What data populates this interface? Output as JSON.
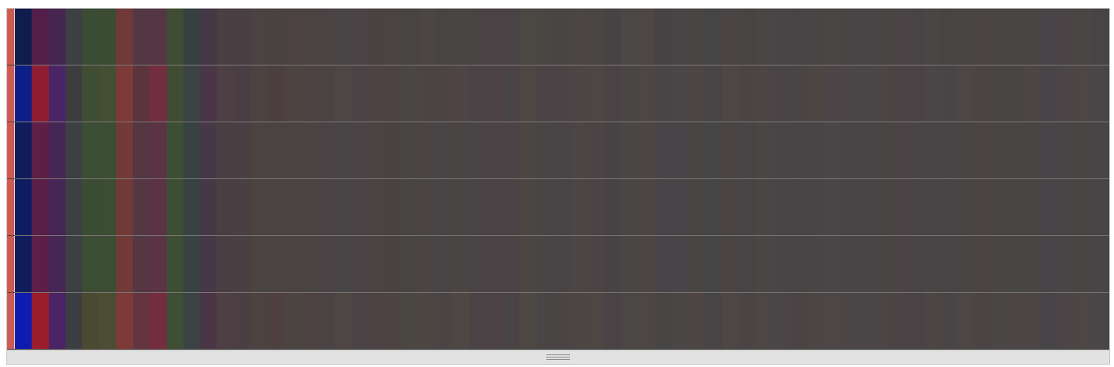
{
  "heatmap": {
    "marker_color": "#cf5a52",
    "background_color": "#474444",
    "separator_color": "#7a7676",
    "resize_grip_icon": "grip-lines-icon",
    "rows": [
      [
        "#0e1d4e",
        "#531f4a",
        "#452650",
        "#3d3f42",
        "#3a4c33",
        "#3c4c33",
        "#6f3a38",
        "#533843",
        "#553644",
        "#3e4d33",
        "#374141",
        "#453946",
        "#4a3f42",
        "#4a3f42",
        "#494441",
        "#4a4143",
        "#4b4241",
        "#494342",
        "#4b4243",
        "#474545",
        "#4b4346",
        "#4a4242",
        "#4a4342",
        "#474542",
        "#4b4543",
        "#474444",
        "#4a4443",
        "#484444",
        "#4b4246",
        "#494345",
        "#4b4743",
        "#4a4644",
        "#484544",
        "#4b4543",
        "#4a4643",
        "#474345",
        "#4a4745",
        "#4c4644",
        "#474345",
        "#474546",
        "#494544",
        "#464546",
        "#4a4544",
        "#474444",
        "#4a4643",
        "#484546",
        "#484445",
        "#484544",
        "#4a4646",
        "#494545",
        "#474545",
        "#484544",
        "#4a4444",
        "#484345",
        "#494644",
        "#474444",
        "#4a4545",
        "#4a4543",
        "#484645",
        "#484645",
        "#4a4545",
        "#474547",
        "#4a4544",
        "#4a4645",
        "#484446"
      ],
      [
        "#0d1e86",
        "#8e1d33",
        "#4a2466",
        "#3d3d40",
        "#3f4e33",
        "#434f33",
        "#7e3a38",
        "#5b343e",
        "#722d41",
        "#3f4e33",
        "#3a4243",
        "#4a3646",
        "#4d3f44",
        "#4a3e44",
        "#4c4240",
        "#4d3e40",
        "#4c4440",
        "#4e4142",
        "#4a4243",
        "#4c4644",
        "#4a4346",
        "#4d4244",
        "#4d4242",
        "#4a4643",
        "#4c4442",
        "#4a4444",
        "#4d4443",
        "#4a4345",
        "#4c4245",
        "#4a4345",
        "#4d4744",
        "#4a4445",
        "#4b4345",
        "#4c4543",
        "#4d4644",
        "#4a4345",
        "#4b4646",
        "#4d4644",
        "#474545",
        "#4a4546",
        "#4c4544",
        "#474447",
        "#4c4644",
        "#4a4444",
        "#4b4644",
        "#4a4446",
        "#494445",
        "#4b4544",
        "#4c4547",
        "#4b4545",
        "#4a4546",
        "#4b4545",
        "#4c4444",
        "#4a4345",
        "#4b4645",
        "#484546",
        "#4c4645",
        "#4b4444",
        "#484645",
        "#4a4545",
        "#4c4545",
        "#474548",
        "#4b4545",
        "#4c4645",
        "#4a4546"
      ],
      [
        "#0f1d5d",
        "#5e1f47",
        "#452655",
        "#3c4042",
        "#3b4d33",
        "#3b4d33",
        "#733a37",
        "#553643",
        "#5a3444",
        "#3d4f33",
        "#384243",
        "#473847",
        "#493f43",
        "#4a3f43",
        "#4a4441",
        "#4b4243",
        "#4a4341",
        "#4a4343",
        "#4a4244",
        "#474545",
        "#4b4346",
        "#4a4243",
        "#4a4242",
        "#474543",
        "#4a4443",
        "#474445",
        "#4a4443",
        "#484446",
        "#4b4246",
        "#494345",
        "#4b4644",
        "#4a4545",
        "#484445",
        "#4b4544",
        "#4a4544",
        "#474345",
        "#4a4646",
        "#4b4644",
        "#474346",
        "#474547",
        "#494544",
        "#464546",
        "#4a4544",
        "#474445",
        "#4a4644",
        "#484546",
        "#484445",
        "#484544",
        "#4a4546",
        "#494545",
        "#474546",
        "#484545",
        "#4a4444",
        "#484346",
        "#494545",
        "#474445",
        "#4a4545",
        "#4a4444",
        "#484545",
        "#484545",
        "#4a4545",
        "#474547",
        "#4a4545",
        "#4a4545",
        "#484546"
      ],
      [
        "#0e1d62",
        "#5a1f48",
        "#452654",
        "#3c4042",
        "#3a4d33",
        "#3c4d33",
        "#723a37",
        "#543743",
        "#5a3443",
        "#3d4f33",
        "#384243",
        "#473846",
        "#493f43",
        "#4a3f43",
        "#4a4441",
        "#4b4243",
        "#4a4341",
        "#4a4342",
        "#4a4244",
        "#474545",
        "#4b4346",
        "#4a4243",
        "#4a4242",
        "#474543",
        "#4a4443",
        "#474445",
        "#4a4443",
        "#484445",
        "#4b4246",
        "#494345",
        "#4b4644",
        "#4a4545",
        "#484445",
        "#4b4544",
        "#4a4544",
        "#474345",
        "#4a4646",
        "#4b4644",
        "#474346",
        "#474547",
        "#494544",
        "#464546",
        "#4a4544",
        "#474445",
        "#4a4644",
        "#484546",
        "#484445",
        "#484544",
        "#4a4546",
        "#494545",
        "#474546",
        "#484545",
        "#4a4444",
        "#484346",
        "#494545",
        "#474445",
        "#4a4545",
        "#4a4444",
        "#484545",
        "#484545",
        "#4a4545",
        "#474547",
        "#4a4545",
        "#4a4545",
        "#484546"
      ],
      [
        "#0f1d5c",
        "#5b1f48",
        "#452655",
        "#3c4042",
        "#3b4d33",
        "#3b4d33",
        "#733a37",
        "#553643",
        "#5a3444",
        "#3d4f33",
        "#384243",
        "#473847",
        "#493f43",
        "#4a3f43",
        "#4a4441",
        "#4b4243",
        "#4a4341",
        "#4a4343",
        "#4a4244",
        "#474545",
        "#4b4346",
        "#4a4243",
        "#4a4242",
        "#474543",
        "#4a4443",
        "#474445",
        "#4a4443",
        "#484446",
        "#4b4246",
        "#494345",
        "#4b4644",
        "#4a4545",
        "#484445",
        "#4b4544",
        "#4a4544",
        "#474345",
        "#4a4646",
        "#4b4644",
        "#474346",
        "#474547",
        "#494544",
        "#464546",
        "#4a4544",
        "#474445",
        "#4a4644",
        "#484546",
        "#484445",
        "#484544",
        "#4a4546",
        "#494545",
        "#474546",
        "#484545",
        "#4a4444",
        "#484346",
        "#494545",
        "#474445",
        "#4a4545",
        "#4a4444",
        "#484545",
        "#484545",
        "#4a4545",
        "#474547",
        "#4a4545",
        "#4a4545",
        "#484546"
      ],
      [
        "#0d1caf",
        "#9a1d2c",
        "#4a2466",
        "#3d3e42",
        "#4a4a33",
        "#4c4d33",
        "#7e3a36",
        "#643540",
        "#742d3f",
        "#3f4f33",
        "#3a4243",
        "#4b3646",
        "#4e3f44",
        "#4c3f44",
        "#4c4340",
        "#4e3f41",
        "#4b4540",
        "#4f4242",
        "#4b4244",
        "#4d4644",
        "#4a4346",
        "#4d4243",
        "#4d4242",
        "#4a4743",
        "#4c4542",
        "#4a4444",
        "#4d4643",
        "#4a4345",
        "#4d4245",
        "#4a4345",
        "#4d4843",
        "#4a4545",
        "#4b4445",
        "#4c4543",
        "#4d4643",
        "#4a4345",
        "#4b4745",
        "#4d4644",
        "#484545",
        "#4a4646",
        "#4d4544",
        "#474447",
        "#4d4644",
        "#4a4444",
        "#4c4744",
        "#4a4546",
        "#4a4445",
        "#4c4544",
        "#4c4646",
        "#4b4545",
        "#4a4546",
        "#4c4545",
        "#4c4444",
        "#4a4345",
        "#4b4644",
        "#494546",
        "#4c4645",
        "#4b4444",
        "#494645",
        "#4b4545",
        "#4c4545",
        "#474548",
        "#4b4545",
        "#4c4645",
        "#4a4546"
      ]
    ]
  }
}
